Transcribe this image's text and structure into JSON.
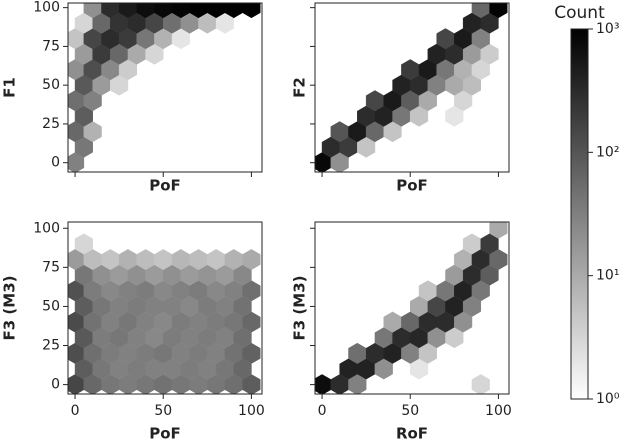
{
  "chart_data": [
    {
      "type": "hexbin",
      "xlabel": "PoF",
      "ylabel": "F1",
      "xlim": [
        -4,
        106
      ],
      "ylim": [
        -6,
        103
      ],
      "xticks": [
        0,
        50,
        100
      ],
      "yticks": [
        0,
        25,
        50,
        75,
        100
      ],
      "xticklabels": false,
      "yticklabels": true,
      "hexes": [
        [
          0,
          0,
          30
        ],
        [
          5,
          10,
          40
        ],
        [
          0,
          20,
          60
        ],
        [
          10,
          20,
          8
        ],
        [
          5,
          30,
          80
        ],
        [
          0,
          40,
          50
        ],
        [
          10,
          40,
          30
        ],
        [
          5,
          50,
          90
        ],
        [
          15,
          50,
          15
        ],
        [
          25,
          50,
          3
        ],
        [
          0,
          60,
          20
        ],
        [
          10,
          60,
          120
        ],
        [
          20,
          60,
          25
        ],
        [
          30,
          60,
          4
        ],
        [
          5,
          70,
          15
        ],
        [
          15,
          70,
          200
        ],
        [
          25,
          70,
          60
        ],
        [
          35,
          70,
          10
        ],
        [
          45,
          70,
          3
        ],
        [
          0,
          80,
          5
        ],
        [
          10,
          80,
          150
        ],
        [
          20,
          80,
          300
        ],
        [
          30,
          80,
          200
        ],
        [
          40,
          80,
          40
        ],
        [
          50,
          80,
          8
        ],
        [
          60,
          80,
          2
        ],
        [
          5,
          90,
          3
        ],
        [
          15,
          90,
          60
        ],
        [
          25,
          90,
          250
        ],
        [
          35,
          90,
          300
        ],
        [
          45,
          90,
          150
        ],
        [
          55,
          90,
          50
        ],
        [
          65,
          90,
          20
        ],
        [
          75,
          90,
          6
        ],
        [
          85,
          90,
          2
        ],
        [
          10,
          100,
          20
        ],
        [
          20,
          100,
          300
        ],
        [
          30,
          100,
          500
        ],
        [
          40,
          100,
          700
        ],
        [
          50,
          100,
          800
        ],
        [
          60,
          100,
          900
        ],
        [
          70,
          100,
          1000
        ],
        [
          80,
          100,
          1000
        ],
        [
          90,
          100,
          1000
        ],
        [
          100,
          100,
          1000
        ]
      ]
    },
    {
      "type": "hexbin",
      "xlabel": "PoF",
      "ylabel": "F2",
      "xlim": [
        -4,
        106
      ],
      "ylim": [
        -6,
        103
      ],
      "xticks": [
        0,
        50,
        100
      ],
      "yticks": [
        0,
        25,
        50,
        75,
        100
      ],
      "xticklabels": false,
      "yticklabels": false,
      "hexes": [
        [
          0,
          0,
          800
        ],
        [
          10,
          0,
          20
        ],
        [
          5,
          10,
          300
        ],
        [
          15,
          10,
          200
        ],
        [
          25,
          10,
          5
        ],
        [
          10,
          20,
          100
        ],
        [
          20,
          20,
          500
        ],
        [
          30,
          20,
          60
        ],
        [
          40,
          20,
          5
        ],
        [
          25,
          30,
          300
        ],
        [
          35,
          30,
          400
        ],
        [
          45,
          30,
          40
        ],
        [
          55,
          30,
          5
        ],
        [
          75,
          30,
          2
        ],
        [
          30,
          40,
          150
        ],
        [
          40,
          40,
          500
        ],
        [
          50,
          40,
          80
        ],
        [
          60,
          40,
          10
        ],
        [
          80,
          40,
          3
        ],
        [
          45,
          50,
          400
        ],
        [
          55,
          50,
          300
        ],
        [
          65,
          50,
          30
        ],
        [
          75,
          50,
          10
        ],
        [
          85,
          50,
          6
        ],
        [
          50,
          60,
          200
        ],
        [
          60,
          60,
          500
        ],
        [
          70,
          60,
          40
        ],
        [
          80,
          60,
          8
        ],
        [
          90,
          60,
          3
        ],
        [
          65,
          70,
          400
        ],
        [
          75,
          70,
          300
        ],
        [
          85,
          70,
          15
        ],
        [
          95,
          70,
          4
        ],
        [
          70,
          80,
          150
        ],
        [
          80,
          80,
          500
        ],
        [
          90,
          80,
          30
        ],
        [
          85,
          90,
          400
        ],
        [
          95,
          90,
          300
        ],
        [
          90,
          100,
          60
        ],
        [
          100,
          100,
          900
        ]
      ]
    },
    {
      "type": "hexbin",
      "xlabel": "PoF",
      "ylabel": "F3 (M3)",
      "xlim": [
        -4,
        106
      ],
      "ylim": [
        -6,
        104
      ],
      "xticks": [
        0,
        50,
        100
      ],
      "yticks": [
        0,
        25,
        50,
        75,
        100
      ],
      "xticklabels": true,
      "yticklabels": true,
      "hexes": [
        [
          0,
          0,
          150
        ],
        [
          10,
          0,
          60
        ],
        [
          20,
          0,
          40
        ],
        [
          30,
          0,
          35
        ],
        [
          40,
          0,
          40
        ],
        [
          50,
          0,
          45
        ],
        [
          60,
          0,
          40
        ],
        [
          70,
          0,
          35
        ],
        [
          80,
          0,
          40
        ],
        [
          90,
          0,
          50
        ],
        [
          100,
          0,
          80
        ],
        [
          5,
          10,
          80
        ],
        [
          15,
          10,
          40
        ],
        [
          25,
          10,
          30
        ],
        [
          35,
          10,
          35
        ],
        [
          45,
          10,
          30
        ],
        [
          55,
          10,
          30
        ],
        [
          65,
          10,
          35
        ],
        [
          75,
          10,
          30
        ],
        [
          85,
          10,
          40
        ],
        [
          95,
          10,
          60
        ],
        [
          0,
          20,
          120
        ],
        [
          10,
          20,
          50
        ],
        [
          20,
          20,
          35
        ],
        [
          30,
          20,
          30
        ],
        [
          40,
          20,
          35
        ],
        [
          50,
          20,
          40
        ],
        [
          60,
          20,
          30
        ],
        [
          70,
          20,
          35
        ],
        [
          80,
          20,
          30
        ],
        [
          90,
          20,
          45
        ],
        [
          100,
          20,
          70
        ],
        [
          5,
          30,
          90
        ],
        [
          15,
          30,
          35
        ],
        [
          25,
          30,
          40
        ],
        [
          35,
          30,
          30
        ],
        [
          45,
          30,
          25
        ],
        [
          55,
          30,
          35
        ],
        [
          65,
          30,
          30
        ],
        [
          75,
          30,
          35
        ],
        [
          85,
          30,
          30
        ],
        [
          95,
          30,
          50
        ],
        [
          0,
          40,
          130
        ],
        [
          10,
          40,
          45
        ],
        [
          20,
          40,
          30
        ],
        [
          30,
          40,
          40
        ],
        [
          40,
          40,
          30
        ],
        [
          50,
          40,
          25
        ],
        [
          60,
          40,
          35
        ],
        [
          70,
          40,
          30
        ],
        [
          80,
          40,
          35
        ],
        [
          90,
          40,
          40
        ],
        [
          100,
          40,
          60
        ],
        [
          5,
          50,
          80
        ],
        [
          15,
          50,
          40
        ],
        [
          25,
          50,
          30
        ],
        [
          35,
          50,
          35
        ],
        [
          45,
          50,
          30
        ],
        [
          55,
          50,
          30
        ],
        [
          65,
          50,
          25
        ],
        [
          75,
          50,
          35
        ],
        [
          85,
          50,
          30
        ],
        [
          95,
          50,
          45
        ],
        [
          0,
          60,
          110
        ],
        [
          10,
          60,
          35
        ],
        [
          20,
          60,
          25
        ],
        [
          30,
          60,
          30
        ],
        [
          40,
          60,
          35
        ],
        [
          50,
          60,
          25
        ],
        [
          60,
          60,
          30
        ],
        [
          70,
          60,
          35
        ],
        [
          80,
          60,
          25
        ],
        [
          90,
          60,
          30
        ],
        [
          100,
          60,
          50
        ],
        [
          5,
          70,
          40
        ],
        [
          15,
          70,
          20
        ],
        [
          25,
          70,
          15
        ],
        [
          35,
          70,
          20
        ],
        [
          45,
          70,
          15
        ],
        [
          55,
          70,
          20
        ],
        [
          65,
          70,
          15
        ],
        [
          75,
          70,
          18
        ],
        [
          85,
          70,
          15
        ],
        [
          95,
          70,
          25
        ],
        [
          0,
          80,
          15
        ],
        [
          10,
          80,
          6
        ],
        [
          20,
          80,
          5
        ],
        [
          30,
          80,
          8
        ],
        [
          40,
          80,
          6
        ],
        [
          50,
          80,
          5
        ],
        [
          60,
          80,
          7
        ],
        [
          70,
          80,
          6
        ],
        [
          80,
          80,
          5
        ],
        [
          90,
          80,
          8
        ],
        [
          100,
          80,
          10
        ],
        [
          5,
          90,
          3
        ]
      ]
    },
    {
      "type": "hexbin",
      "xlabel": "RoF",
      "ylabel": "F3 (M3)",
      "xlim": [
        -4,
        106
      ],
      "ylim": [
        -6,
        104
      ],
      "xticks": [
        0,
        50,
        100
      ],
      "yticks": [
        0,
        25,
        50,
        75,
        100
      ],
      "xticklabels": true,
      "yticklabels": false,
      "hexes": [
        [
          0,
          0,
          700
        ],
        [
          10,
          0,
          300
        ],
        [
          20,
          0,
          30
        ],
        [
          90,
          0,
          3
        ],
        [
          15,
          10,
          400
        ],
        [
          25,
          10,
          400
        ],
        [
          35,
          10,
          20
        ],
        [
          55,
          10,
          2
        ],
        [
          20,
          20,
          50
        ],
        [
          30,
          20,
          300
        ],
        [
          40,
          20,
          400
        ],
        [
          50,
          20,
          30
        ],
        [
          60,
          20,
          5
        ],
        [
          35,
          30,
          40
        ],
        [
          45,
          30,
          300
        ],
        [
          55,
          30,
          350
        ],
        [
          65,
          30,
          20
        ],
        [
          75,
          30,
          4
        ],
        [
          40,
          40,
          10
        ],
        [
          50,
          40,
          60
        ],
        [
          60,
          40,
          300
        ],
        [
          70,
          40,
          300
        ],
        [
          80,
          40,
          20
        ],
        [
          55,
          50,
          10
        ],
        [
          65,
          50,
          150
        ],
        [
          75,
          50,
          400
        ],
        [
          85,
          50,
          30
        ],
        [
          60,
          60,
          5
        ],
        [
          70,
          60,
          40
        ],
        [
          80,
          60,
          400
        ],
        [
          90,
          60,
          40
        ],
        [
          75,
          70,
          15
        ],
        [
          85,
          70,
          300
        ],
        [
          95,
          70,
          80
        ],
        [
          80,
          80,
          8
        ],
        [
          90,
          80,
          300
        ],
        [
          100,
          80,
          60
        ],
        [
          85,
          90,
          4
        ],
        [
          95,
          90,
          200
        ],
        [
          100,
          100,
          10
        ]
      ]
    }
  ],
  "colorbar": {
    "label": "Count",
    "log": true,
    "lim": [
      1,
      1000
    ],
    "cmap": "Greys",
    "ticks": [
      {
        "value": 1,
        "label": "10⁰"
      },
      {
        "value": 10,
        "label": "10¹"
      },
      {
        "value": 100,
        "label": "10²"
      },
      {
        "value": 1000,
        "label": "10³"
      }
    ]
  }
}
